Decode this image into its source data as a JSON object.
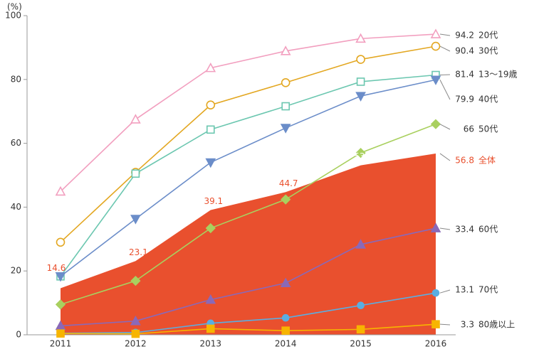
{
  "chart_data": {
    "type": "line",
    "y_label": "(%)",
    "categories": [
      "2011",
      "2012",
      "2013",
      "2014",
      "2015",
      "2016"
    ],
    "ylim": [
      0,
      100
    ],
    "yticks": [
      0,
      20,
      40,
      60,
      80,
      100
    ],
    "series": [
      {
        "name": "20代",
        "color": "#f29fbf",
        "marker": "triangle-open",
        "values": [
          44.9,
          67.5,
          83.6,
          88.9,
          92.8,
          94.2
        ]
      },
      {
        "name": "30代",
        "color": "#e3a721",
        "marker": "circle-open",
        "values": [
          29.0,
          50.9,
          72.0,
          79.0,
          86.3,
          90.4
        ]
      },
      {
        "name": "13～19歳",
        "color": "#6cc7b0",
        "marker": "square-open",
        "values": [
          18.3,
          50.5,
          64.3,
          71.6,
          79.3,
          81.4
        ]
      },
      {
        "name": "40代",
        "color": "#6b8dc9",
        "marker": "triangle-down",
        "values": [
          18.3,
          36.3,
          54.0,
          64.8,
          74.8,
          79.9
        ]
      },
      {
        "name": "50代",
        "color": "#a9d05f",
        "marker": "diamond",
        "values": [
          9.5,
          16.9,
          33.4,
          42.4,
          57.0,
          66.0
        ]
      },
      {
        "name": "全体",
        "color": "#e9502e",
        "marker": "area",
        "values": [
          14.6,
          23.1,
          39.1,
          44.7,
          53.1,
          56.8
        ]
      },
      {
        "name": "60代",
        "color": "#8a69b8",
        "marker": "triangle",
        "values": [
          2.8,
          4.3,
          11.0,
          16.2,
          28.3,
          33.4
        ]
      },
      {
        "name": "70代",
        "color": "#5aaee2",
        "marker": "circle",
        "values": [
          0.5,
          0.7,
          3.6,
          5.3,
          9.2,
          13.1
        ]
      },
      {
        "name": "80歳以上",
        "color": "#f7b500",
        "marker": "square",
        "values": [
          0.4,
          0.3,
          1.9,
          1.3,
          1.7,
          3.3
        ]
      }
    ]
  }
}
